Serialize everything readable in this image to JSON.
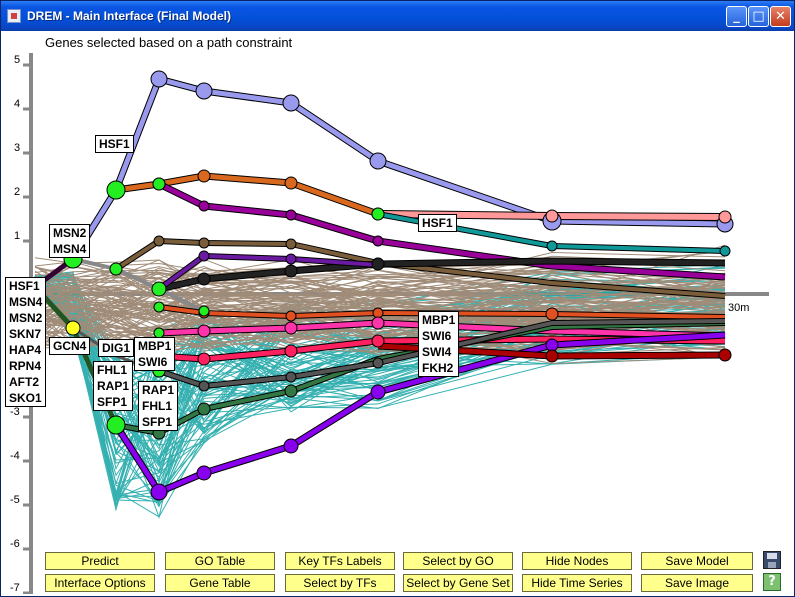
{
  "window": {
    "title": "DREM - Main Interface (Final Model)",
    "buttons": {
      "minimize": "_",
      "maximize": "□",
      "close": "✕"
    }
  },
  "plot": {
    "subtitle": "Genes selected based on a path constraint",
    "y_ticks": [
      "5",
      "4",
      "3",
      "2",
      "1",
      "-3",
      "-4",
      "-5",
      "-6",
      "-7"
    ],
    "x_tick_label": "30m",
    "colors": {
      "background_series": "#a08c78",
      "cyan_series": "#20a8a8",
      "axis": "#888888"
    }
  },
  "tf_labels": [
    {
      "id": "hsf1-top",
      "lines": [
        "HSF1"
      ]
    },
    {
      "id": "msn",
      "lines": [
        "MSN2",
        "MSN4"
      ]
    },
    {
      "id": "left-list",
      "lines": [
        "HSF1",
        "MSN4",
        "MSN2",
        "SKN7",
        "HAP4",
        "RPN4",
        "AFT2",
        "SKO1"
      ]
    },
    {
      "id": "gcn4",
      "lines": [
        "GCN4"
      ]
    },
    {
      "id": "dig1",
      "lines": [
        "DIG1"
      ]
    },
    {
      "id": "mbp-swi",
      "lines": [
        "MBP1",
        "SWI6"
      ]
    },
    {
      "id": "fhl-rap-sfp",
      "lines": [
        "FHL1",
        "RAP1",
        "SFP1"
      ]
    },
    {
      "id": "rap-fhl-sfp",
      "lines": [
        "RAP1",
        "FHL1",
        "SFP1"
      ]
    },
    {
      "id": "hsf1-right",
      "lines": [
        "HSF1"
      ]
    },
    {
      "id": "mbp-swi-fkh",
      "lines": [
        "MBP1",
        "SWI6",
        "SWI4",
        "FKH2"
      ]
    }
  ],
  "buttons": {
    "predict": "Predict",
    "go_table": "GO Table",
    "key_tfs": "Key TFs Labels",
    "select_go": "Select by GO",
    "hide_nodes": "Hide Nodes",
    "save_model": "Save Model",
    "interface_options": "Interface Options",
    "gene_table": "Gene Table",
    "select_tfs": "Select by TFs",
    "select_gene_set": "Select by Gene Set",
    "hide_time_series": "Hide Time Series",
    "save_image": "Save Image"
  },
  "icons": {
    "save": "floppy-disk-icon",
    "help": "help-icon",
    "help_glyph": "?"
  },
  "paths": [
    {
      "name": "",
      "color": "#9999ee"
    },
    {
      "name": "",
      "color": "#d8691e"
    },
    {
      "name": "",
      "color": "#990099"
    },
    {
      "name": "",
      "color": "#ff9999"
    },
    {
      "name": "",
      "color": "#119999"
    },
    {
      "name": "",
      "color": "#7a5e3c"
    },
    {
      "name": "",
      "color": "#222222"
    },
    {
      "name": "",
      "color": "#6a1aa0"
    },
    {
      "name": "",
      "color": "#e05020"
    },
    {
      "name": "",
      "color": "#ff33aa"
    },
    {
      "name": "",
      "color": "#ff2060"
    },
    {
      "name": "",
      "color": "#337744"
    },
    {
      "name": "",
      "color": "#8800ee"
    },
    {
      "name": "",
      "color": "#aa0000"
    }
  ]
}
